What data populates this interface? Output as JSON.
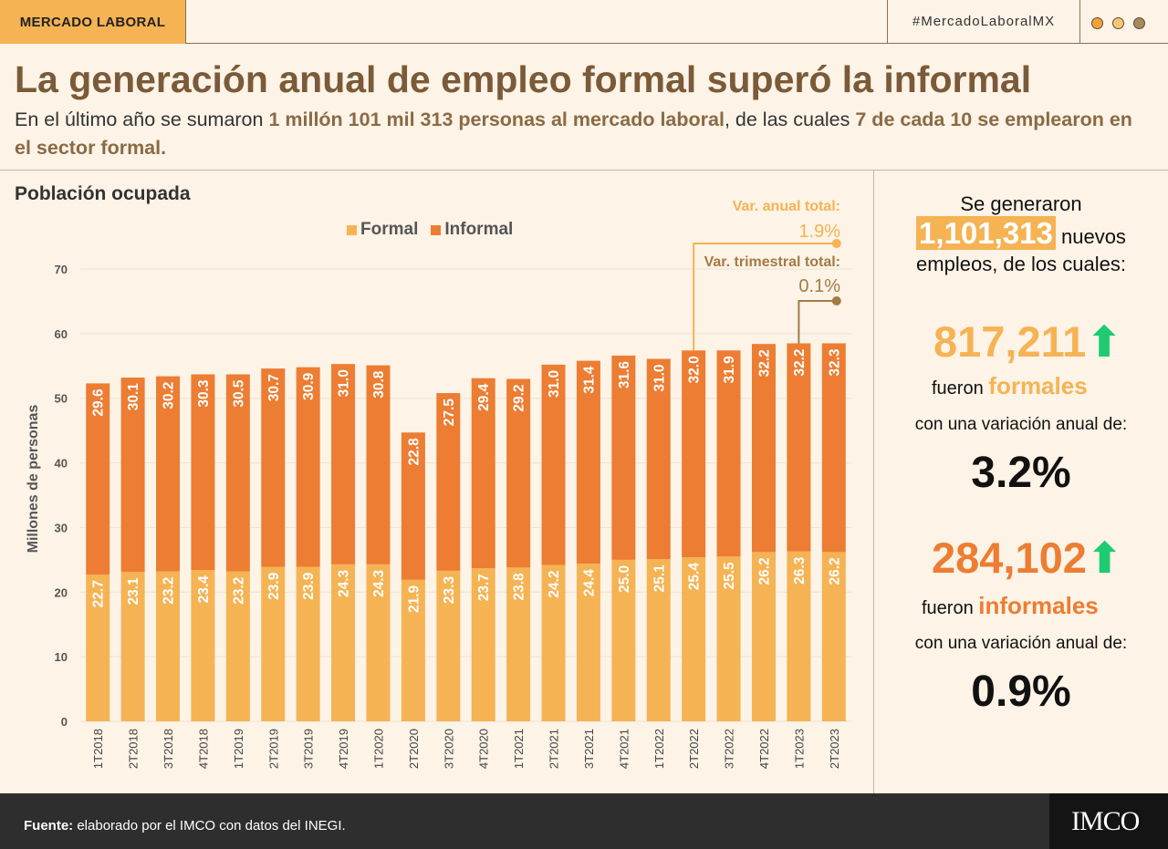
{
  "header": {
    "section": "MERCADO LABORAL",
    "hashtag": "#MercadoLaboralMX",
    "dot_colors": [
      "#f5a03a",
      "#f7c570",
      "#a8895a"
    ]
  },
  "title": "La generación anual de empleo formal superó la informal",
  "subtitle": {
    "p1": "En el último año se sumaron ",
    "h1": "1 millón 101 mil 313 personas al mercado laboral",
    "p2": ", de las cuales ",
    "h2": "7 de cada 10 se emplearon en el sector formal."
  },
  "chart_data": {
    "type": "bar",
    "stacked": true,
    "title": "Población ocupada",
    "ylabel": "Millones de personas",
    "xlabel": "",
    "ylim": [
      0,
      70
    ],
    "yticks": [
      0,
      10,
      20,
      30,
      40,
      50,
      60,
      70
    ],
    "categories": [
      "1T2018",
      "2T2018",
      "3T2018",
      "4T2018",
      "1T2019",
      "2T2019",
      "3T2019",
      "4T2019",
      "1T2020",
      "2T2020",
      "3T2020",
      "4T2020",
      "1T2021",
      "2T2021",
      "3T2021",
      "4T2021",
      "1T2022",
      "2T2022",
      "3T2022",
      "4T2022",
      "1T2023",
      "2T2023"
    ],
    "series": [
      {
        "name": "Formal",
        "color": "#f5b354",
        "values": [
          22.7,
          23.1,
          23.2,
          23.4,
          23.2,
          23.9,
          23.9,
          24.3,
          24.3,
          21.9,
          23.3,
          23.7,
          23.8,
          24.2,
          24.4,
          25.0,
          25.1,
          25.4,
          25.5,
          26.2,
          26.3,
          26.2
        ]
      },
      {
        "name": "Informal",
        "color": "#ec7d33",
        "values": [
          29.6,
          30.1,
          30.2,
          30.3,
          30.5,
          30.7,
          30.9,
          31.0,
          30.8,
          22.8,
          27.5,
          29.4,
          29.2,
          31.0,
          31.4,
          31.6,
          31.0,
          32.0,
          31.9,
          32.2,
          32.2,
          32.3
        ]
      }
    ],
    "legend_position": "top-center",
    "annotations": [
      {
        "label": "Var. anual total:",
        "value": "1.9%",
        "color": "#f5b354",
        "from": "2T2022",
        "to": "2T2023"
      },
      {
        "label": "Var. trimestral total:",
        "value": "0.1%",
        "color": "#a47a45",
        "from": "1T2023",
        "to": "2T2023"
      }
    ]
  },
  "side": {
    "intro_before": "Se generaron",
    "total": "1,101,313",
    "intro_after_1": "nuevos",
    "intro_after_2": "empleos, de los cuales:",
    "formal": {
      "count": "817,211",
      "arrow": "⬆",
      "lead": "fueron",
      "kind": "formales",
      "var_text": "con una variación anual de:",
      "var": "3.2%",
      "color": "#f5b354"
    },
    "informal": {
      "count": "284,102",
      "arrow": "⬆",
      "lead": "fueron",
      "kind": "informales",
      "var_text": "con una variación anual de:",
      "var": "0.9%",
      "color": "#ec7d33"
    },
    "arrow_color": "#1ecb71"
  },
  "footer": {
    "source_label": "Fuente:",
    "source_text": "elaborado por el IMCO con datos del INEGI.",
    "logo": "IMCO"
  }
}
